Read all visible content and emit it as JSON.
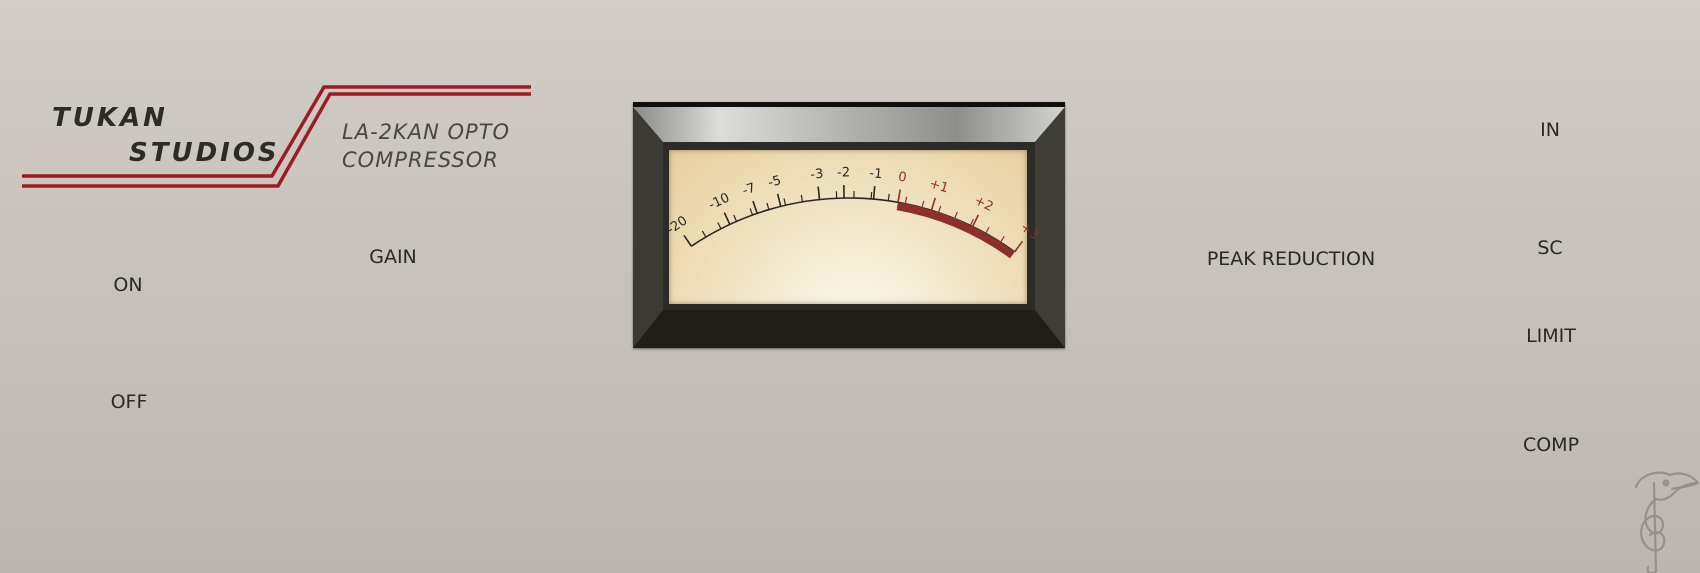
{
  "brand": {
    "line1": "TUKAN",
    "line2": "STUDIOS",
    "product_line1": "LA-2KAN OPTO",
    "product_line2": "COMPRESSOR",
    "stripe_color": "#9c1c24"
  },
  "power": {
    "on_label": "ON",
    "off_label": "OFF"
  },
  "gain": {
    "label": "GAIN"
  },
  "peak_reduction": {
    "label": "PEAK REDUCTION"
  },
  "sidechain": {
    "in_label": "IN",
    "sc_label": "SC"
  },
  "mode": {
    "limit_label": "LIMIT",
    "comp_label": "COMP"
  },
  "meter": {
    "scale_labels": [
      "-20",
      "-10",
      "-7",
      "-5",
      "-3",
      "-2",
      "-1",
      "0",
      "+1",
      "+2",
      "+3"
    ],
    "normal_color": "#2a2722",
    "red_zone_color": "#8f2f2c"
  },
  "icons": {
    "mascot": "toucan-treble-clef-icon"
  }
}
